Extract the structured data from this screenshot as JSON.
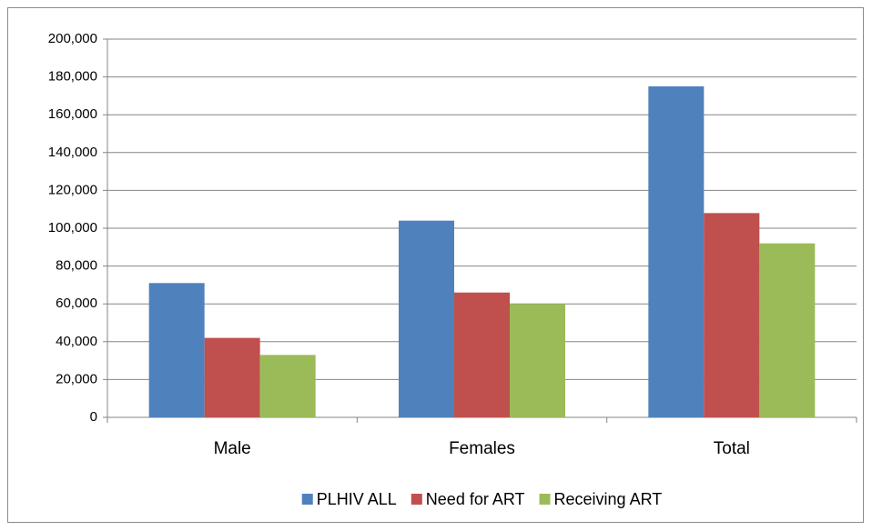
{
  "chart_data": {
    "type": "bar",
    "categories": [
      "Male",
      "Females",
      "Total"
    ],
    "series": [
      {
        "name": "PLHIV ALL",
        "color": "#4f81bd",
        "values": [
          71000,
          104000,
          175000
        ]
      },
      {
        "name": "Need for ART",
        "color": "#c0504d",
        "values": [
          42000,
          66000,
          108000
        ]
      },
      {
        "name": "Receiving ART",
        "color": "#9bbb59",
        "values": [
          33000,
          60000,
          92000
        ]
      }
    ],
    "ylim": [
      0,
      200000
    ],
    "yticks": [
      0,
      {
        "value": 20000,
        "label": "20,000"
      },
      {
        "value": 40000,
        "label": "40,000"
      },
      {
        "value": 60000,
        "label": "60,000"
      },
      {
        "value": 80000,
        "label": "80,000"
      },
      {
        "value": 100000,
        "label": "100,000"
      },
      {
        "value": 120000,
        "label": "120,000"
      },
      {
        "value": 140000,
        "label": "140,000"
      },
      {
        "value": 160000,
        "label": "160,000"
      },
      {
        "value": 180000,
        "label": "180,000"
      },
      {
        "value": 200000,
        "label": "200,000"
      }
    ],
    "grid": true,
    "legend": "bottom"
  }
}
